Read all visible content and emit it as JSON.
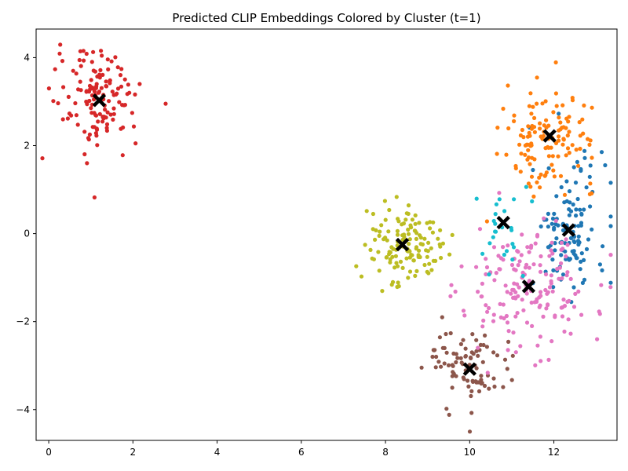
{
  "chart_data": {
    "type": "scatter",
    "title": "Predicted CLIP Embeddings Colored by Cluster (t=1)",
    "xlabel": "",
    "ylabel": "",
    "xlim": [
      -0.3,
      13.5
    ],
    "ylim": [
      -4.7,
      4.65
    ],
    "xticks": [
      0,
      2,
      4,
      6,
      8,
      10,
      12
    ],
    "yticks": [
      -4,
      -2,
      0,
      2,
      4
    ],
    "tick_labels": {
      "x": [
        "0",
        "2",
        "4",
        "6",
        "8",
        "10",
        "12"
      ],
      "y": [
        "−4",
        "−2",
        "0",
        "2",
        "4"
      ]
    },
    "grid": false,
    "legend": "none",
    "series": [
      {
        "color": "#1f77b4",
        "center": [
          12.35,
          0.08
        ],
        "spread": [
          0.45,
          0.8
        ],
        "n": 120
      },
      {
        "color": "#ff7f0e",
        "center": [
          11.9,
          2.2
        ],
        "spread": [
          0.55,
          0.55
        ],
        "n": 130
      },
      {
        "color": "#d62728",
        "center": [
          1.2,
          3.05
        ],
        "spread": [
          0.5,
          0.55
        ],
        "n": 140
      },
      {
        "color": "#8c564b",
        "center": [
          10.0,
          -3.05
        ],
        "spread": [
          0.5,
          0.5
        ],
        "n": 90
      },
      {
        "color": "#e377c2",
        "center": [
          11.4,
          -1.2
        ],
        "spread": [
          0.75,
          0.75
        ],
        "n": 170
      },
      {
        "color": "#bcbd22",
        "center": [
          8.4,
          -0.25
        ],
        "spread": [
          0.45,
          0.45
        ],
        "n": 130
      },
      {
        "color": "#17becf",
        "center": [
          10.8,
          0.25
        ],
        "spread": [
          0.3,
          0.45
        ],
        "n": 25
      }
    ],
    "centroids": [
      {
        "x": 1.2,
        "y": 3.03
      },
      {
        "x": 11.9,
        "y": 2.22
      },
      {
        "x": 12.35,
        "y": 0.08
      },
      {
        "x": 10.8,
        "y": 0.25
      },
      {
        "x": 8.4,
        "y": -0.25
      },
      {
        "x": 11.4,
        "y": -1.2
      },
      {
        "x": 10.0,
        "y": -3.08
      }
    ],
    "centroid_marker": "X",
    "centroid_color": "#000000"
  }
}
